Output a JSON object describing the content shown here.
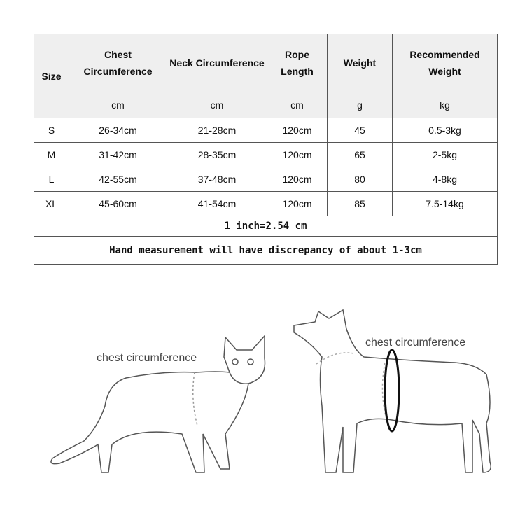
{
  "table": {
    "headers": [
      "Size",
      "Chest Circumference",
      "Neck Circumference",
      "Rope Length",
      "Weight",
      "Recommended Weight"
    ],
    "units": [
      "cm",
      "cm",
      "cm",
      "g",
      "kg"
    ],
    "rows": [
      [
        "S",
        "26-34cm",
        "21-28cm",
        "120cm",
        "45",
        "0.5-3kg"
      ],
      [
        "M",
        "31-42cm",
        "28-35cm",
        "120cm",
        "65",
        "2-5kg"
      ],
      [
        "L",
        "42-55cm",
        "37-48cm",
        "120cm",
        "80",
        "4-8kg"
      ],
      [
        "XL",
        "45-60cm",
        "41-54cm",
        "120cm",
        "85",
        "7.5-14kg"
      ]
    ],
    "note_inch": "1 inch=2.54 cm",
    "note_measurement": "Hand measurement will have discrepancy of about 1-3cm"
  },
  "illustrations": {
    "cat_label": "chest circumference",
    "dog_label": "chest circumference"
  }
}
